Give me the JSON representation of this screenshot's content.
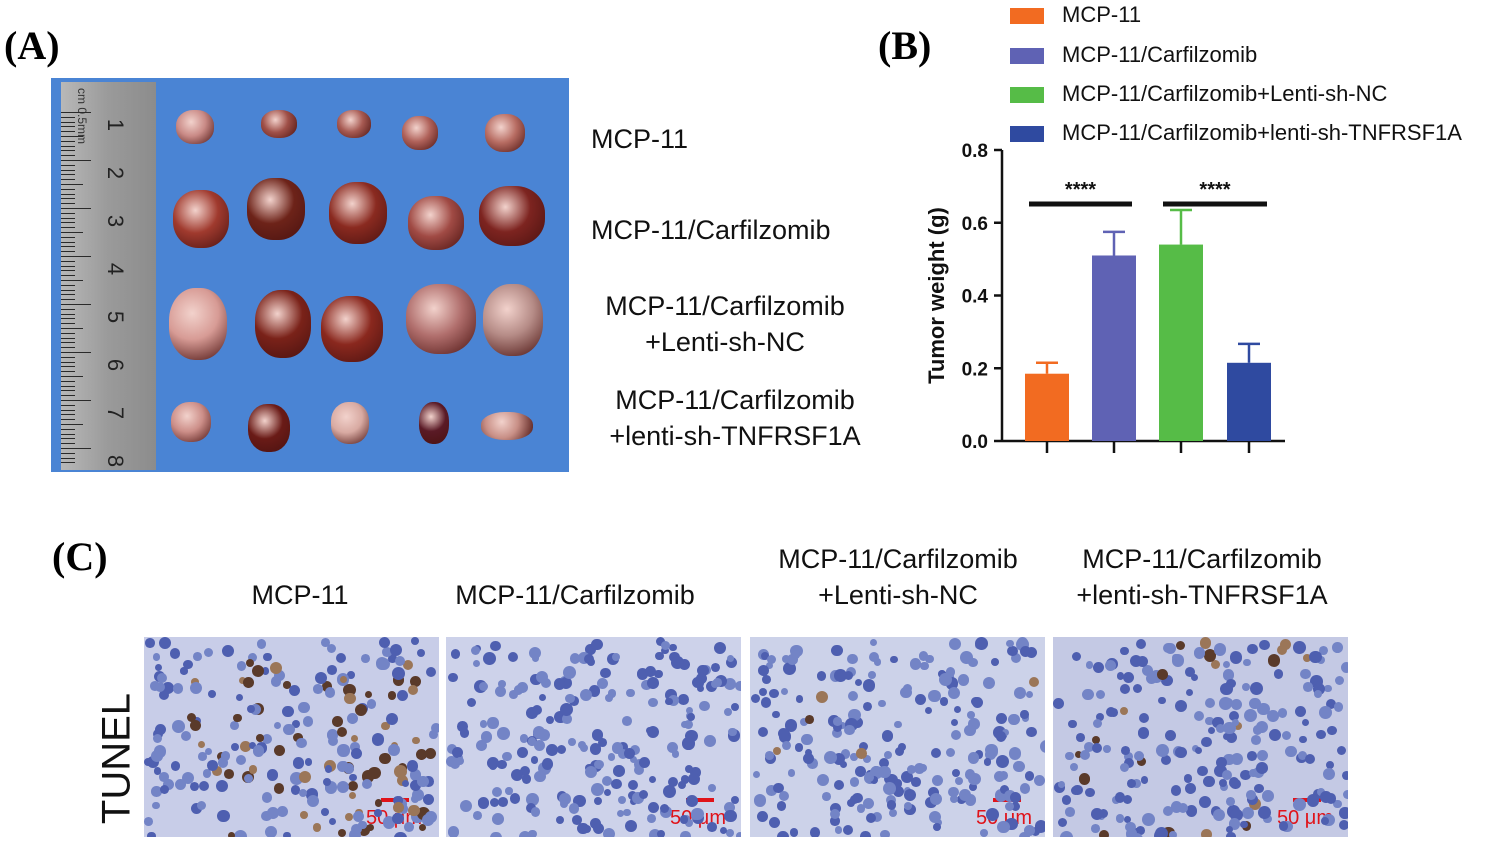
{
  "panels": {
    "a": "(A)",
    "b": "(B)",
    "c": "(C)"
  },
  "photo_labels": [
    {
      "lines": [
        "MCP-11"
      ]
    },
    {
      "lines": [
        "MCP-11/Carfilzomib"
      ]
    },
    {
      "lines": [
        "MCP-11/Carfilzomib",
        "+Lenti-sh-NC"
      ]
    },
    {
      "lines": [
        "MCP-11/Carfilzomib",
        "+lenti-sh-TNFRSF1A"
      ]
    }
  ],
  "ruler_numbers": [
    "1",
    "2",
    "3",
    "4",
    "5",
    "6",
    "7",
    "8"
  ],
  "ruler_units": "cm 0.5mm",
  "chart_data": {
    "type": "bar",
    "ylabel": "Tumor weight (g)",
    "ylim": [
      0,
      0.8
    ],
    "yticks": [
      "0.0",
      "0.2",
      "0.4",
      "0.6",
      "0.8"
    ],
    "categories": [
      "MCP-11",
      "MCP-11/Carfilzomib",
      "MCP-11/Carfilzomib+Lenti-sh-NC",
      "MCP-11/Carfilzomib+lenti-sh-TNFRSF1A"
    ],
    "values": [
      0.185,
      0.51,
      0.54,
      0.215
    ],
    "errors": [
      0.03,
      0.065,
      0.095,
      0.052
    ],
    "colors": [
      "#f26b21",
      "#5f62b4",
      "#56bc47",
      "#2f4aa0"
    ],
    "significance": [
      {
        "from": 0,
        "to": 1,
        "label": "****"
      },
      {
        "from": 2,
        "to": 3,
        "label": "****"
      }
    ],
    "legend": [
      "MCP-11",
      "MCP-11/Carfilzomib",
      "MCP-11/Carfilzomib+Lenti-sh-NC",
      "MCP-11/Carfilzomib+lenti-sh-TNFRSF1A"
    ]
  },
  "tunel": {
    "row_label": "TUNEL",
    "columns": [
      {
        "lines": [
          "MCP-11"
        ]
      },
      {
        "lines": [
          "MCP-11/Carfilzomib"
        ]
      },
      {
        "lines": [
          "MCP-11/Carfilzomib",
          "+Lenti-sh-NC"
        ]
      },
      {
        "lines": [
          "MCP-11/Carfilzomib",
          "+lenti-sh-TNFRSF1A"
        ]
      }
    ],
    "scale_label": "50 μm"
  }
}
